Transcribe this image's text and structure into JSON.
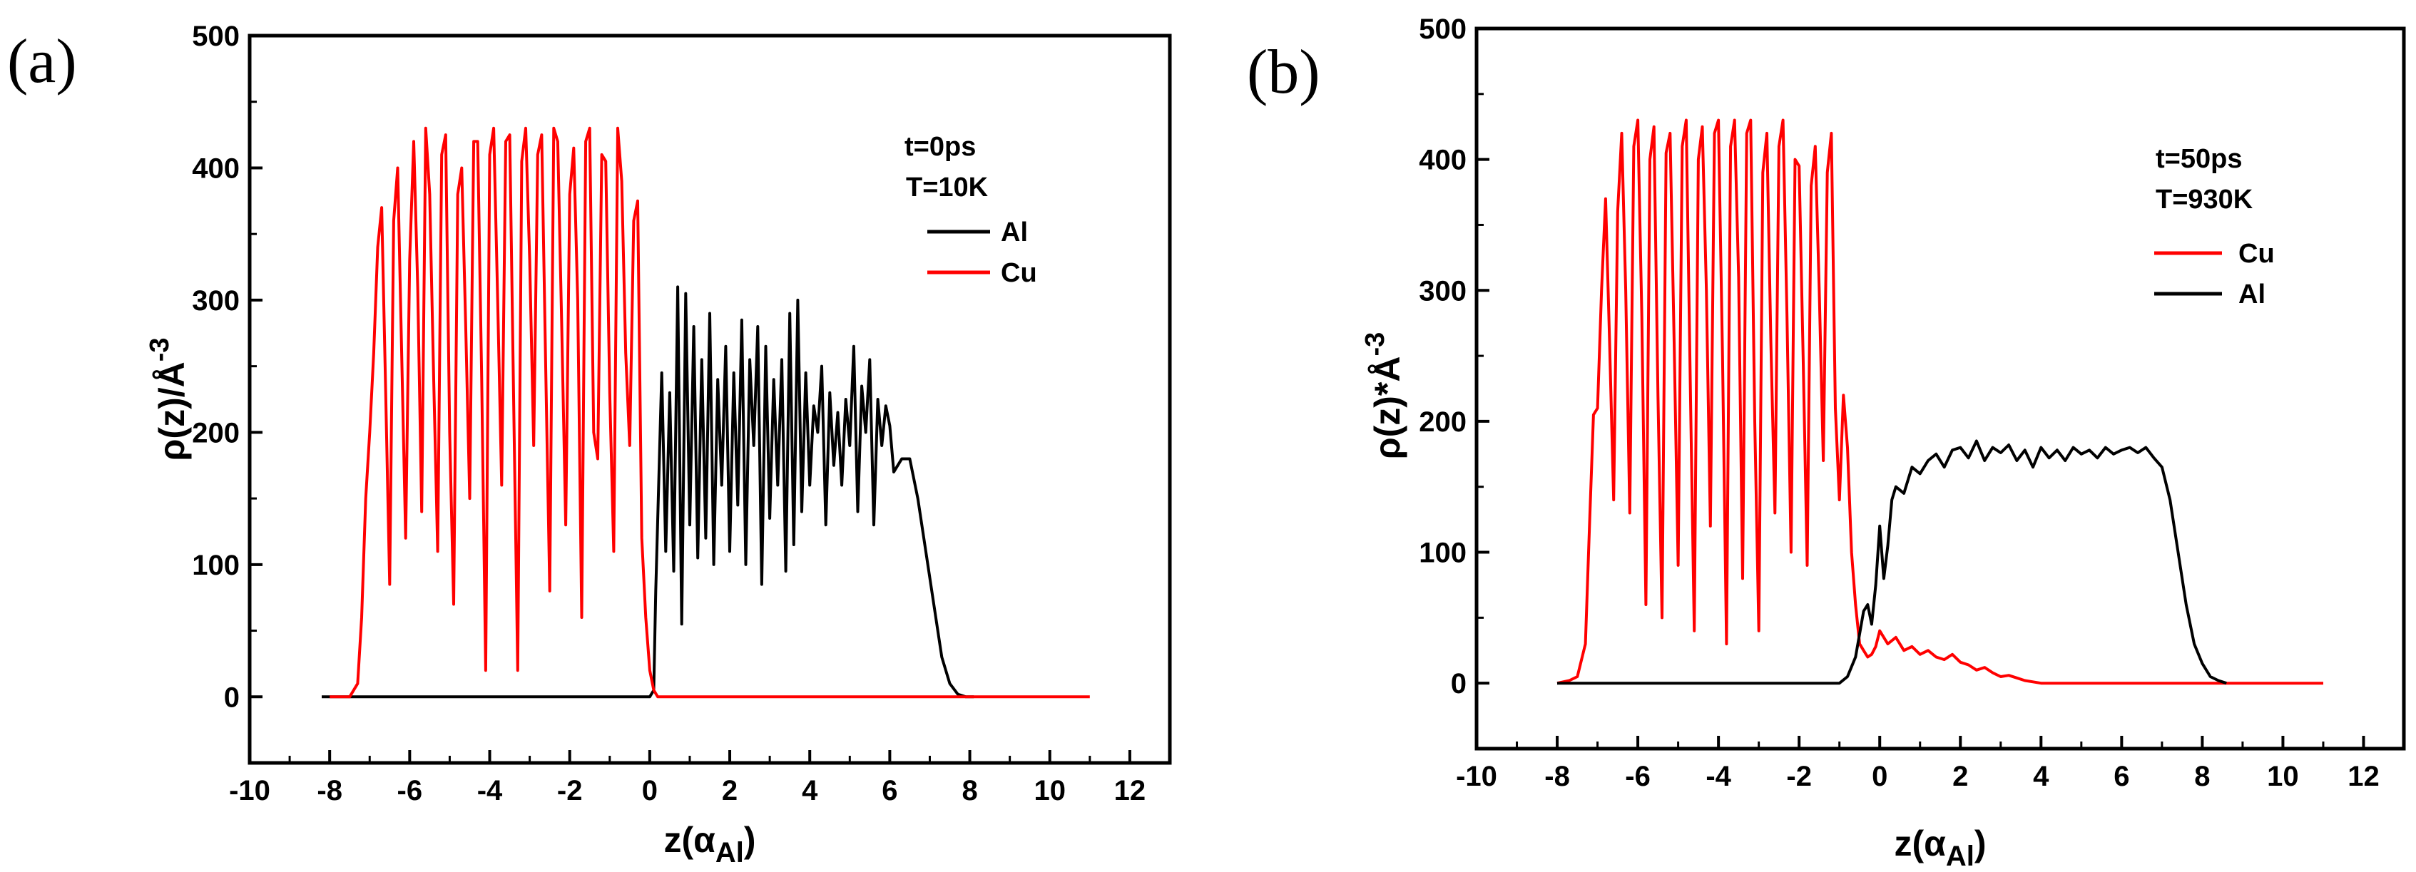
{
  "chart_data": [
    {
      "type": "line",
      "panel_label": "(a)",
      "xlabel": "z(α",
      "xlabel_sub": "Al",
      "xlabel_close": ")",
      "ylabel": "ρ(z)/Å^-3",
      "ylabel_parts": [
        "ρ(z)/",
        "Å",
        "-3"
      ],
      "xlim": [
        -10,
        13
      ],
      "ylim": [
        -50,
        500
      ],
      "xticks": [
        -10,
        -8,
        -6,
        -4,
        -2,
        0,
        2,
        4,
        6,
        8,
        10,
        12
      ],
      "yticks": [
        0,
        100,
        200,
        300,
        400,
        500
      ],
      "legend_placement": "top-right",
      "annotations": [
        "t=0ps",
        "T=10K"
      ],
      "series": [
        {
          "name": "Al",
          "color": "#000000",
          "x": [
            -8.2,
            -7.5,
            0.0,
            0.1,
            0.15,
            0.3,
            0.4,
            0.5,
            0.6,
            0.7,
            0.8,
            0.9,
            1.0,
            1.1,
            1.2,
            1.3,
            1.4,
            1.5,
            1.6,
            1.7,
            1.8,
            1.9,
            2.0,
            2.1,
            2.2,
            2.3,
            2.4,
            2.5,
            2.6,
            2.7,
            2.8,
            2.9,
            3.0,
            3.1,
            3.2,
            3.3,
            3.4,
            3.5,
            3.6,
            3.7,
            3.8,
            3.9,
            4.0,
            4.1,
            4.2,
            4.3,
            4.4,
            4.5,
            4.6,
            4.7,
            4.8,
            4.9,
            5.0,
            5.1,
            5.2,
            5.3,
            5.4,
            5.5,
            5.6,
            5.7,
            5.8,
            5.9,
            6.0,
            6.1,
            6.2,
            6.3,
            6.5,
            6.7,
            6.9,
            7.1,
            7.3,
            7.5,
            7.7,
            7.9,
            8.1
          ],
          "y": [
            0,
            0,
            0,
            5,
            80,
            245,
            110,
            230,
            95,
            310,
            55,
            305,
            130,
            280,
            105,
            255,
            120,
            290,
            100,
            240,
            160,
            265,
            110,
            245,
            145,
            285,
            100,
            255,
            190,
            280,
            85,
            265,
            135,
            240,
            160,
            255,
            95,
            290,
            115,
            300,
            140,
            245,
            160,
            220,
            200,
            250,
            130,
            230,
            175,
            215,
            160,
            225,
            190,
            265,
            140,
            235,
            200,
            255,
            130,
            225,
            190,
            220,
            205,
            170,
            175,
            180,
            180,
            150,
            110,
            70,
            30,
            10,
            2,
            0,
            0
          ]
        },
        {
          "name": "Cu",
          "color": "#ff0000",
          "x": [
            -8.0,
            -7.5,
            -7.3,
            -7.2,
            -7.1,
            -7.0,
            -6.9,
            -6.8,
            -6.7,
            -6.6,
            -6.5,
            -6.4,
            -6.3,
            -6.2,
            -6.1,
            -6.0,
            -5.9,
            -5.8,
            -5.7,
            -5.6,
            -5.5,
            -5.4,
            -5.3,
            -5.2,
            -5.1,
            -5.0,
            -4.9,
            -4.8,
            -4.7,
            -4.6,
            -4.5,
            -4.4,
            -4.3,
            -4.2,
            -4.1,
            -4.0,
            -3.9,
            -3.8,
            -3.7,
            -3.6,
            -3.5,
            -3.4,
            -3.3,
            -3.2,
            -3.1,
            -3.0,
            -2.9,
            -2.8,
            -2.7,
            -2.6,
            -2.5,
            -2.4,
            -2.3,
            -2.2,
            -2.1,
            -2.0,
            -1.9,
            -1.8,
            -1.7,
            -1.6,
            -1.5,
            -1.4,
            -1.3,
            -1.2,
            -1.1,
            -1.0,
            -0.9,
            -0.8,
            -0.7,
            -0.6,
            -0.5,
            -0.4,
            -0.3,
            -0.2,
            -0.1,
            0.0,
            0.1,
            0.2,
            11.0
          ],
          "y": [
            0,
            0,
            10,
            60,
            150,
            200,
            260,
            340,
            370,
            230,
            85,
            360,
            400,
            260,
            120,
            330,
            420,
            310,
            140,
            430,
            380,
            240,
            110,
            410,
            425,
            200,
            70,
            380,
            400,
            280,
            150,
            420,
            420,
            240,
            20,
            410,
            430,
            300,
            160,
            420,
            425,
            220,
            20,
            405,
            430,
            330,
            190,
            410,
            425,
            250,
            80,
            430,
            420,
            280,
            130,
            380,
            415,
            300,
            60,
            420,
            430,
            200,
            180,
            410,
            405,
            230,
            110,
            430,
            390,
            260,
            190,
            360,
            375,
            120,
            60,
            20,
            5,
            0,
            0
          ]
        }
      ]
    },
    {
      "type": "line",
      "panel_label": "(b)",
      "xlabel": "z(α",
      "xlabel_sub": "Al",
      "xlabel_close": ")",
      "ylabel": "ρ(z)*Å^-3",
      "ylabel_parts": [
        "ρ(z)*",
        "Å",
        "-3"
      ],
      "xlim": [
        -10,
        13
      ],
      "ylim": [
        -50,
        500
      ],
      "xticks": [
        -10,
        -8,
        -6,
        -4,
        -2,
        0,
        2,
        4,
        6,
        8,
        10,
        12
      ],
      "yticks": [
        0,
        100,
        200,
        300,
        400,
        500
      ],
      "legend_placement": "top-right",
      "annotations": [
        "t=50ps",
        "T=930K"
      ],
      "series": [
        {
          "name": "Cu",
          "color": "#ff0000",
          "x": [
            -8.0,
            -7.7,
            -7.5,
            -7.3,
            -7.2,
            -7.1,
            -7.0,
            -6.9,
            -6.8,
            -6.7,
            -6.6,
            -6.5,
            -6.4,
            -6.3,
            -6.2,
            -6.1,
            -6.0,
            -5.9,
            -5.8,
            -5.7,
            -5.6,
            -5.5,
            -5.4,
            -5.3,
            -5.2,
            -5.1,
            -5.0,
            -4.9,
            -4.8,
            -4.7,
            -4.6,
            -4.5,
            -4.4,
            -4.3,
            -4.2,
            -4.1,
            -4.0,
            -3.9,
            -3.8,
            -3.7,
            -3.6,
            -3.5,
            -3.4,
            -3.3,
            -3.2,
            -3.1,
            -3.0,
            -2.9,
            -2.8,
            -2.7,
            -2.6,
            -2.5,
            -2.4,
            -2.3,
            -2.2,
            -2.1,
            -2.0,
            -1.9,
            -1.8,
            -1.7,
            -1.6,
            -1.5,
            -1.4,
            -1.3,
            -1.2,
            -1.1,
            -1.0,
            -0.9,
            -0.8,
            -0.7,
            -0.6,
            -0.5,
            -0.4,
            -0.3,
            -0.2,
            -0.1,
            0.0,
            0.2,
            0.4,
            0.6,
            0.8,
            1.0,
            1.2,
            1.4,
            1.6,
            1.8,
            2.0,
            2.2,
            2.4,
            2.6,
            2.8,
            3.0,
            3.2,
            3.4,
            3.6,
            3.8,
            4.0,
            4.5,
            5.0,
            6.0,
            8.0,
            11.0
          ],
          "y": [
            0,
            2,
            5,
            30,
            120,
            205,
            210,
            300,
            370,
            260,
            140,
            360,
            420,
            300,
            130,
            410,
            430,
            280,
            60,
            400,
            425,
            220,
            50,
            405,
            420,
            260,
            90,
            410,
            430,
            230,
            40,
            400,
            425,
            300,
            120,
            420,
            430,
            250,
            30,
            410,
            430,
            310,
            80,
            420,
            430,
            200,
            40,
            390,
            420,
            260,
            130,
            410,
            430,
            280,
            100,
            400,
            395,
            250,
            90,
            380,
            410,
            300,
            170,
            390,
            420,
            210,
            140,
            220,
            180,
            100,
            60,
            30,
            25,
            20,
            22,
            28,
            40,
            30,
            35,
            25,
            28,
            22,
            25,
            20,
            18,
            22,
            16,
            14,
            10,
            12,
            8,
            5,
            6,
            4,
            2,
            1,
            0,
            0,
            0,
            0,
            0,
            0
          ]
        },
        {
          "name": "Al",
          "color": "#000000",
          "x": [
            -8.0,
            -1.0,
            -0.8,
            -0.6,
            -0.4,
            -0.3,
            -0.2,
            -0.1,
            0.0,
            0.1,
            0.2,
            0.3,
            0.4,
            0.6,
            0.8,
            1.0,
            1.2,
            1.4,
            1.6,
            1.8,
            2.0,
            2.2,
            2.4,
            2.6,
            2.8,
            3.0,
            3.2,
            3.4,
            3.6,
            3.8,
            4.0,
            4.2,
            4.4,
            4.6,
            4.8,
            5.0,
            5.2,
            5.4,
            5.6,
            5.8,
            6.0,
            6.2,
            6.4,
            6.6,
            6.8,
            7.0,
            7.2,
            7.4,
            7.6,
            7.8,
            8.0,
            8.2,
            8.4,
            8.6
          ],
          "y": [
            0,
            0,
            5,
            20,
            55,
            60,
            45,
            75,
            120,
            80,
            105,
            140,
            150,
            145,
            165,
            160,
            170,
            175,
            165,
            178,
            180,
            172,
            185,
            170,
            180,
            176,
            182,
            170,
            178,
            165,
            180,
            172,
            178,
            170,
            180,
            175,
            178,
            172,
            180,
            175,
            178,
            180,
            176,
            180,
            172,
            165,
            140,
            100,
            60,
            30,
            15,
            5,
            2,
            0
          ]
        }
      ]
    }
  ]
}
